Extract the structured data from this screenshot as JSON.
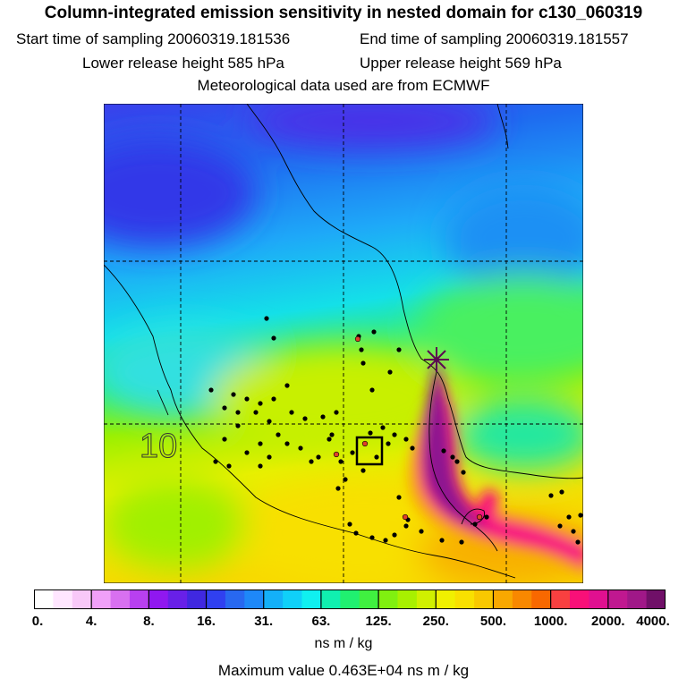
{
  "header": {
    "title": "Column-integrated emission sensitivity in nested domain for c130_060319",
    "start_label": "Start time of sampling 20060319.181536",
    "end_label": "End time of sampling 20060319.181557",
    "lower_label": "Lower release height  585 hPa",
    "upper_label": "Upper release height  569 hPa",
    "met_label": "Meteorological data used are from ECMWF"
  },
  "map": {
    "contour_label": "10",
    "colors": {
      "deep_blue": "#3a28e8",
      "blue": "#1e6cf0",
      "sky": "#1ea8f8",
      "cyan": "#14e8e0",
      "green": "#3ef040",
      "yellowgreen": "#b4f000",
      "yellow": "#f8e800",
      "orange": "#f8a800",
      "magenta": "#f81080",
      "purple": "#8c1890"
    }
  },
  "colorbar": {
    "labels": [
      "0.",
      "4.",
      "8.",
      "16.",
      "31.",
      "63.",
      "125.",
      "250.",
      "500.",
      "1000.",
      "2000.",
      "4000."
    ],
    "colors": [
      "#ffffff",
      "#ffe6ff",
      "#f8c8f8",
      "#f0a0f8",
      "#d870f0",
      "#b840f0",
      "#9018f0",
      "#6820e8",
      "#4028e0",
      "#3040f0",
      "#2868f0",
      "#1e88f8",
      "#14b0f8",
      "#10d0f8",
      "#10f0f0",
      "#10f0b0",
      "#20f070",
      "#40f040",
      "#80f010",
      "#a8f000",
      "#d0f000",
      "#f0f000",
      "#f8e000",
      "#f8c800",
      "#f8a800",
      "#f88800",
      "#f86800",
      "#f84040",
      "#f81078",
      "#e01090",
      "#c01890",
      "#a01888",
      "#701068"
    ],
    "units": "ns m / kg",
    "max_label": "Maximum value  0.463E+04 ns m / kg"
  }
}
